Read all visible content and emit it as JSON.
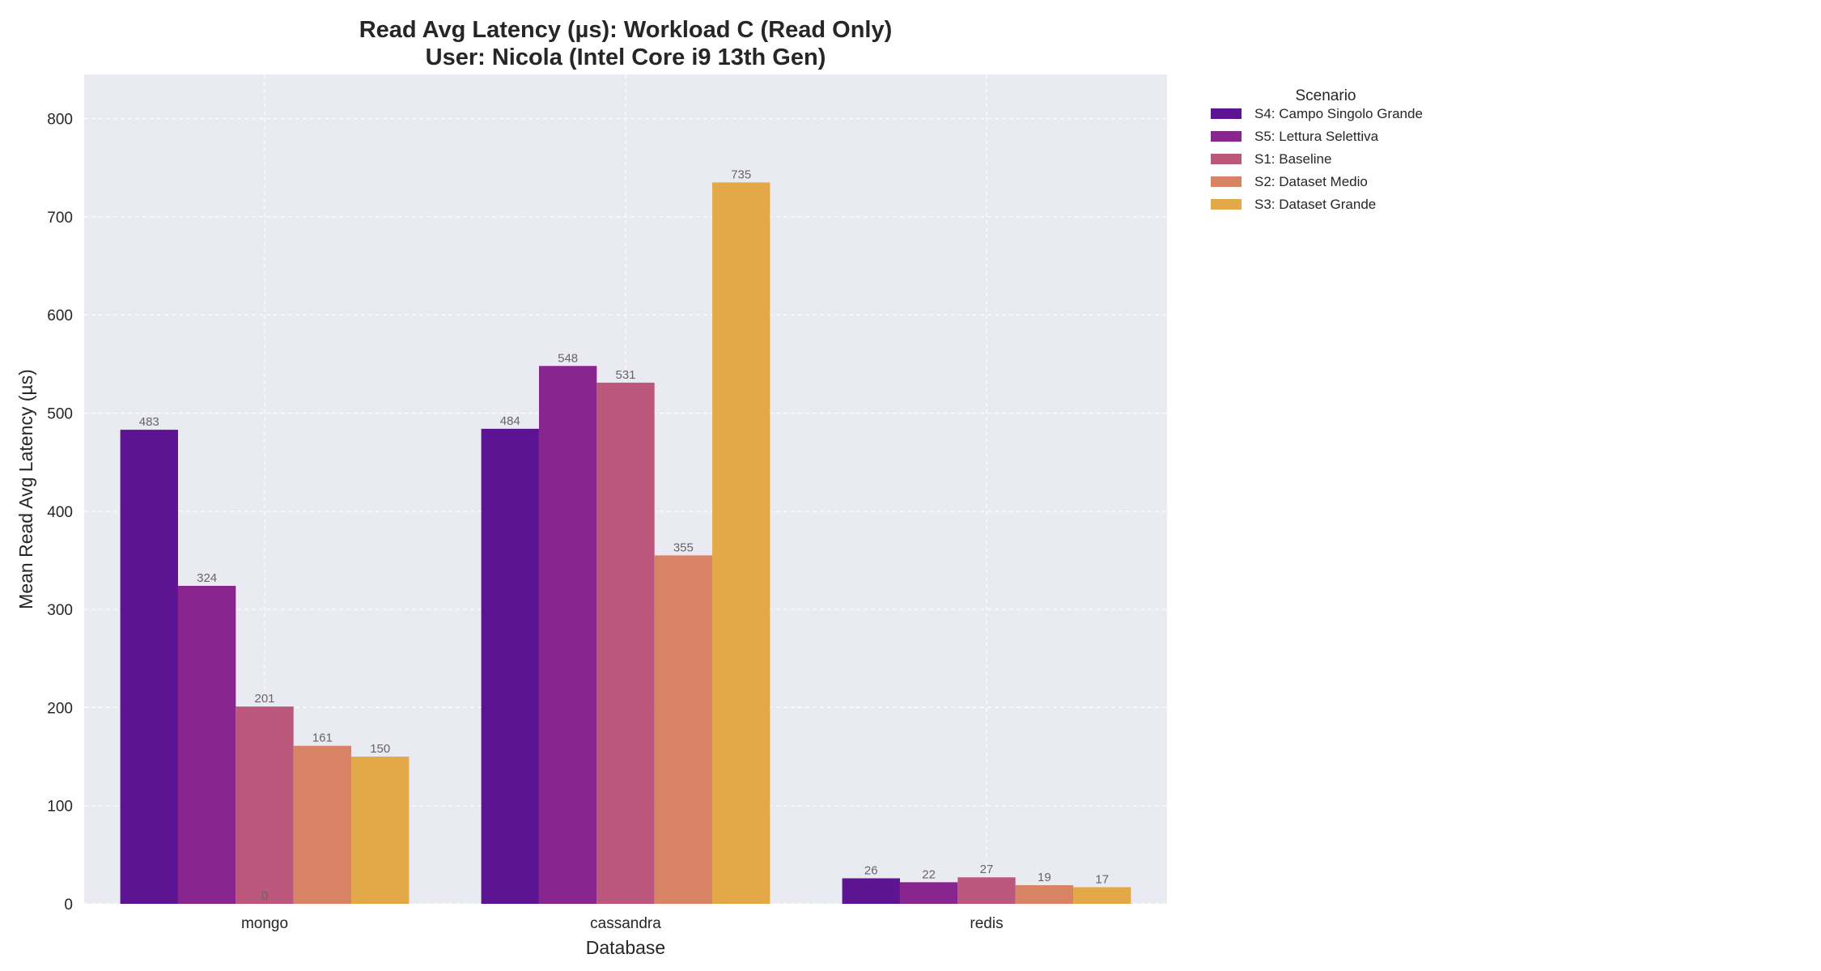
{
  "chart_data": {
    "type": "bar",
    "title": "Read Avg Latency (µs): Workload C (Read Only)",
    "subtitle": "User: Nicola (Intel Core i9 13th Gen)",
    "xlabel": "Database",
    "ylabel": "Mean Read Avg Latency (µs)",
    "ylim": [
      0,
      845
    ],
    "yticks": [
      0,
      100,
      200,
      300,
      400,
      500,
      600,
      700,
      800
    ],
    "grid": true,
    "categories": [
      "mongo",
      "cassandra",
      "redis"
    ],
    "legend": {
      "title": "Scenario",
      "placement": "outside-top-right"
    },
    "series": [
      {
        "name": "S4: Campo Singolo Grande",
        "color": "#5c1492",
        "values": [
          483,
          484,
          26
        ],
        "labels": [
          "483",
          "484",
          "26"
        ]
      },
      {
        "name": "S5: Lettura Selettiva",
        "color": "#89258e",
        "values": [
          324,
          548,
          22
        ],
        "labels": [
          "324",
          "548",
          "22"
        ]
      },
      {
        "name": "S1: Baseline",
        "color": "#bb577a",
        "values": [
          201,
          531,
          27
        ],
        "labels": [
          "201",
          "531",
          "27"
        ]
      },
      {
        "name": "S2: Dataset Medio",
        "color": "#d98365",
        "values": [
          161,
          355,
          19
        ],
        "labels": [
          "161",
          "355",
          "19"
        ]
      },
      {
        "name": "S3: Dataset Grande",
        "color": "#e3a948",
        "values": [
          150,
          735,
          17
        ],
        "labels": [
          "150",
          "735",
          "17"
        ]
      }
    ],
    "annotations": [
      {
        "text": "0",
        "category": "mongo",
        "value": 0
      }
    ]
  }
}
